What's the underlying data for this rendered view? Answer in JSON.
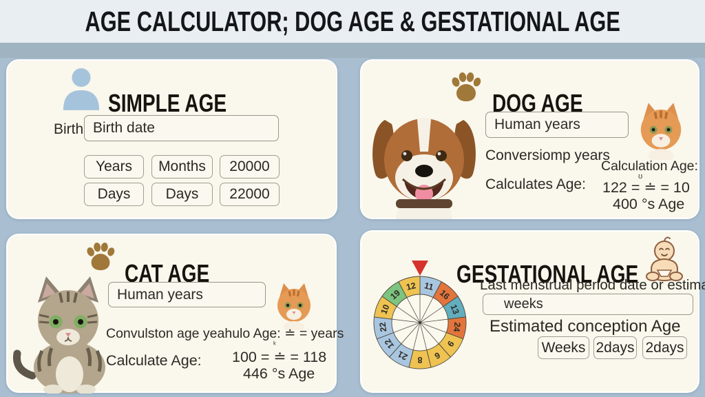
{
  "title": "AGE CALCULATOR; DOG AGE & GESTATIONAL AGE",
  "colors": {
    "page_bg": "#a9bed1",
    "header_bg": "#e9eef2",
    "band": "#9fb3c0",
    "card_bg": "#faf7ec",
    "person_icon_blue": "#a6c3dc",
    "paw_brown": "#a0783a",
    "pointer_red": "#d5342c",
    "wheel_blue": "#a9c6e0",
    "wheel_orange": "#e2743c",
    "wheel_teal": "#62aebe",
    "wheel_yellow": "#efc352",
    "wheel_green": "#7cc47f"
  },
  "simple_age": {
    "heading": "SIMPLE AGE",
    "birth_label": "Birth:",
    "birth_input": "Birth date",
    "boxes": [
      [
        "Years",
        "Months",
        "20000"
      ],
      [
        "Days",
        "Days",
        "22000"
      ]
    ]
  },
  "dog_age": {
    "heading": "DOG AGE",
    "input": "Human years",
    "line1": "Conversiomp years",
    "line2": "Calculates Age:",
    "calc_label": "Calculation Age:",
    "tiny_glyph": "ʊ",
    "result_line1": "122 = ≐ = 10",
    "result_line2": "400 °s Age"
  },
  "cat_age": {
    "heading": "CAT AGE",
    "input": "Human years",
    "line1": "Convulston age yeahulo Age: ≐ = years",
    "line2": "Calculate Age:",
    "tiny_glyph": "ᵏ",
    "result_line1": "100 = ≐ = 118",
    "result_line2": "446 °s Age"
  },
  "gestational": {
    "heading": "GESTATIONAL AGE",
    "line1": "Last menstrual period date or estimated",
    "input": "weeks",
    "line2": "Estimated conception Age",
    "buttons": [
      "Weeks",
      "2days",
      "2days"
    ],
    "wheel": {
      "pointer_color": "#d5342c",
      "inner_color": "#fbf8ee",
      "segments": [
        {
          "label": "11",
          "color": "#a9c6e0"
        },
        {
          "label": "16",
          "color": "#e2743c"
        },
        {
          "label": "13",
          "color": "#62aebe"
        },
        {
          "label": "24",
          "color": "#e2743c"
        },
        {
          "label": "9",
          "color": "#efc352"
        },
        {
          "label": "6",
          "color": "#efc352"
        },
        {
          "label": "8",
          "color": "#efc352"
        },
        {
          "label": "21",
          "color": "#a9c6e0"
        },
        {
          "label": "12",
          "color": "#a9c6e0"
        },
        {
          "label": "22",
          "color": "#a9c6e0"
        },
        {
          "label": "10",
          "color": "#efc352"
        },
        {
          "label": "19",
          "color": "#7cc47f"
        },
        {
          "label": "12",
          "color": "#efc352"
        }
      ]
    }
  }
}
